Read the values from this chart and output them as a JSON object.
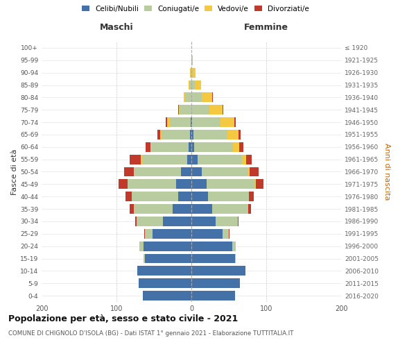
{
  "age_groups": [
    "0-4",
    "5-9",
    "10-14",
    "15-19",
    "20-24",
    "25-29",
    "30-34",
    "35-39",
    "40-44",
    "45-49",
    "50-54",
    "55-59",
    "60-64",
    "65-69",
    "70-74",
    "75-79",
    "80-84",
    "85-89",
    "90-94",
    "95-99",
    "100+"
  ],
  "birth_years": [
    "2016-2020",
    "2011-2015",
    "2006-2010",
    "2001-2005",
    "1996-2000",
    "1991-1995",
    "1986-1990",
    "1981-1985",
    "1976-1980",
    "1971-1975",
    "1966-1970",
    "1961-1965",
    "1956-1960",
    "1951-1955",
    "1946-1950",
    "1941-1945",
    "1936-1940",
    "1931-1935",
    "1926-1930",
    "1921-1925",
    "≤ 1920"
  ],
  "maschi": {
    "celibi": [
      65,
      70,
      72,
      62,
      64,
      52,
      38,
      25,
      18,
      20,
      14,
      6,
      4,
      2,
      1,
      0,
      0,
      0,
      0,
      0,
      0
    ],
    "coniugati": [
      0,
      0,
      0,
      2,
      5,
      10,
      35,
      52,
      62,
      65,
      62,
      60,
      50,
      38,
      28,
      16,
      8,
      3,
      1,
      0,
      0
    ],
    "vedovi": [
      0,
      0,
      0,
      0,
      0,
      0,
      0,
      0,
      0,
      0,
      1,
      2,
      1,
      2,
      3,
      1,
      2,
      1,
      1,
      0,
      0
    ],
    "divorziati": [
      0,
      0,
      0,
      0,
      0,
      1,
      2,
      5,
      8,
      12,
      13,
      14,
      6,
      3,
      2,
      1,
      0,
      0,
      0,
      0,
      0
    ]
  },
  "femmine": {
    "nubili": [
      58,
      65,
      72,
      58,
      55,
      42,
      32,
      28,
      22,
      20,
      14,
      8,
      4,
      3,
      1,
      0,
      0,
      0,
      0,
      0,
      0
    ],
    "coniugate": [
      0,
      0,
      0,
      1,
      4,
      8,
      30,
      48,
      55,
      65,
      62,
      60,
      52,
      45,
      38,
      24,
      14,
      5,
      2,
      1,
      0
    ],
    "vedove": [
      0,
      0,
      0,
      0,
      0,
      0,
      0,
      0,
      0,
      1,
      2,
      5,
      8,
      15,
      18,
      18,
      14,
      8,
      4,
      1,
      0
    ],
    "divorziate": [
      0,
      0,
      0,
      0,
      0,
      1,
      1,
      4,
      6,
      10,
      12,
      8,
      5,
      3,
      2,
      1,
      1,
      0,
      0,
      0,
      0
    ]
  },
  "colors": {
    "celibi_nubili": "#4472a8",
    "coniugati": "#b8cca0",
    "vedovi": "#f5c842",
    "divorziati": "#c0392b"
  },
  "title": "Popolazione per età, sesso e stato civile - 2021",
  "subtitle": "COMUNE DI CHIGNOLO D'ISOLA (BG) - Dati ISTAT 1° gennaio 2021 - Elaborazione TUTTITALIA.IT",
  "xlabel_maschi": "Maschi",
  "xlabel_femmine": "Femmine",
  "ylabel_left": "Fasce di età",
  "ylabel_right": "Anni di nascita",
  "xlim": 200,
  "legend_labels": [
    "Celibi/Nubili",
    "Coniugati/e",
    "Vedovi/e",
    "Divorziati/e"
  ],
  "background_color": "#ffffff",
  "grid_color": "#cccccc"
}
